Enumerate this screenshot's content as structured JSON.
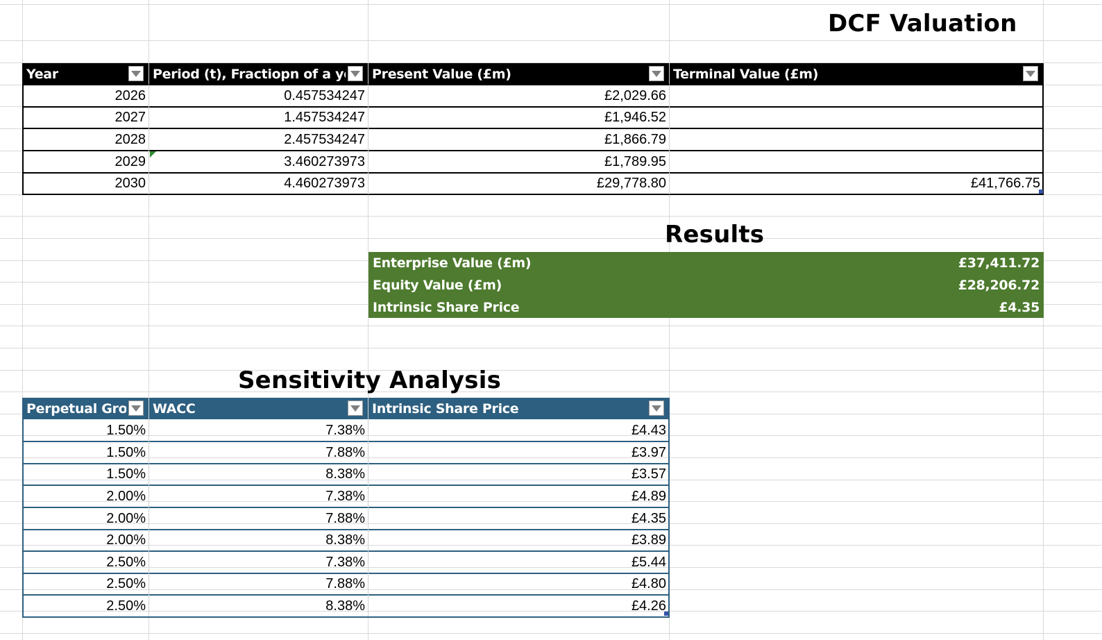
{
  "dcf": {
    "title": "DCF Valuation",
    "headers": [
      "Year",
      "Period (t), Fractiopn of a year",
      "Present Value (£m)",
      "Terminal Value (£m)"
    ],
    "rows": [
      {
        "year": "2026",
        "period": "0.457534247",
        "pv": "£2,029.66",
        "tv": ""
      },
      {
        "year": "2027",
        "period": "1.457534247",
        "pv": "£1,946.52",
        "tv": ""
      },
      {
        "year": "2028",
        "period": "2.457534247",
        "pv": "£1,866.79",
        "tv": ""
      },
      {
        "year": "2029",
        "period": "3.460273973",
        "pv": "£1,789.95",
        "tv": ""
      },
      {
        "year": "2030",
        "period": "4.460273973",
        "pv": "£29,778.80",
        "tv": "£41,766.75"
      }
    ]
  },
  "results": {
    "title": "Results",
    "rows": [
      {
        "label": "Enterprise Value (£m)",
        "value": "£37,411.72"
      },
      {
        "label": "Equity Value (£m)",
        "value": "£28,206.72"
      },
      {
        "label": "Intrinsic Share Price",
        "value": "£4.35"
      }
    ]
  },
  "sensitivity": {
    "title": "Sensitivity Analysis",
    "headers": [
      "Perpetual Growth",
      "WACC",
      "Intrinsic Share Price"
    ],
    "rows": [
      {
        "growth": "1.50%",
        "wacc": "7.38%",
        "price": "£4.43"
      },
      {
        "growth": "1.50%",
        "wacc": "7.88%",
        "price": "£3.97"
      },
      {
        "growth": "1.50%",
        "wacc": "8.38%",
        "price": "£3.57"
      },
      {
        "growth": "2.00%",
        "wacc": "7.38%",
        "price": "£4.89"
      },
      {
        "growth": "2.00%",
        "wacc": "7.88%",
        "price": "£4.35"
      },
      {
        "growth": "2.00%",
        "wacc": "8.38%",
        "price": "£3.89"
      },
      {
        "growth": "2.50%",
        "wacc": "7.38%",
        "price": "£5.44"
      },
      {
        "growth": "2.50%",
        "wacc": "7.88%",
        "price": "£4.80"
      },
      {
        "growth": "2.50%",
        "wacc": "8.38%",
        "price": "£4.26"
      }
    ]
  },
  "colors": {
    "dcf_header": "#000000",
    "results_fill": "#4e7b2f",
    "sensitivity_header": "#2d5f80",
    "sensitivity_rowline": "#2d5f80",
    "dcf_rowline": "#000000"
  },
  "icons": {
    "filter": "filter-dropdown-icon",
    "error_indicator": "green-triangle-icon",
    "resize_handle": "table-resize-handle-icon"
  }
}
